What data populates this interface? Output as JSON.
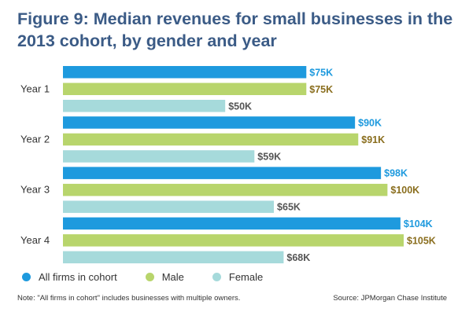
{
  "title": "Figure 9: Median revenues for small businesses in the 2013 cohort, by gender and year",
  "note": "Note: \"All firms in cohort\" includes businesses with multiple owners.",
  "source": "Source: JPMorgan Chase Institute",
  "colors": {
    "all": "#1e9ade",
    "male": "#b8d56c",
    "female": "#a6dadb",
    "label_all": "#1e9ade",
    "label_male": "#8a6e1e",
    "label_female": "#555555",
    "axis_label": "#333333"
  },
  "chart_data": {
    "type": "bar",
    "orientation": "horizontal",
    "categories": [
      "Year 1",
      "Year 2",
      "Year 3",
      "Year 4"
    ],
    "series": [
      {
        "name": "All firms in cohort",
        "values": [
          75,
          90,
          98,
          104
        ],
        "labels": [
          "$75K",
          "$90K",
          "$98K",
          "$104K"
        ]
      },
      {
        "name": "Male",
        "values": [
          75,
          91,
          100,
          105
        ],
        "labels": [
          "$75K",
          "$91K",
          "$100K",
          "$105K"
        ]
      },
      {
        "name": "Female",
        "values": [
          50,
          59,
          65,
          68
        ],
        "labels": [
          "$50K",
          "$59K",
          "$65K",
          "$68K"
        ]
      }
    ],
    "xlim": [
      0,
      105
    ],
    "legend": "bottom",
    "grid": false
  }
}
